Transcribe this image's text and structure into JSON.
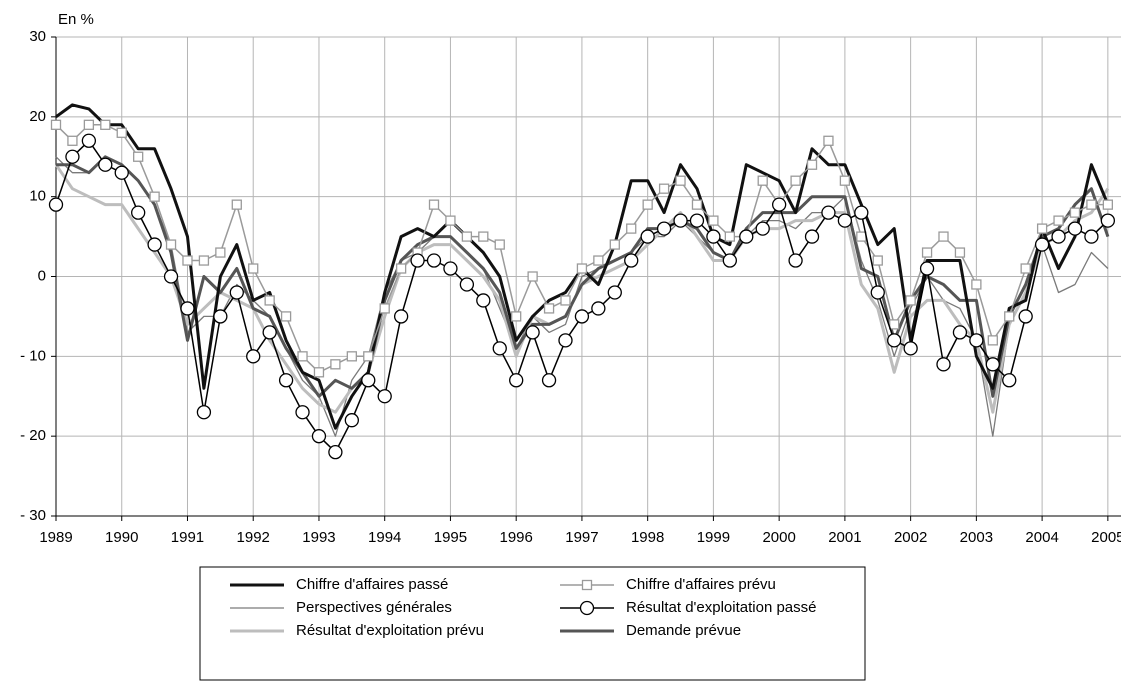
{
  "chart_data": {
    "type": "line",
    "y_label": "En %",
    "x": [
      1989,
      1989.25,
      1989.5,
      1989.75,
      1990,
      1990.25,
      1990.5,
      1990.75,
      1991,
      1991.25,
      1991.5,
      1991.75,
      1992,
      1992.25,
      1992.5,
      1992.75,
      1993,
      1993.25,
      1993.5,
      1993.75,
      1994,
      1994.25,
      1994.5,
      1994.75,
      1995,
      1995.25,
      1995.5,
      1995.75,
      1996,
      1996.25,
      1996.5,
      1996.75,
      1997,
      1997.25,
      1997.5,
      1997.75,
      1998,
      1998.25,
      1998.5,
      1998.75,
      1999,
      1999.25,
      1999.5,
      1999.75,
      2000,
      2000.25,
      2000.5,
      2000.75,
      2001,
      2001.25,
      2001.5,
      2001.75,
      2002,
      2002.25,
      2002.5,
      2002.75,
      2003,
      2003.25,
      2003.5,
      2003.75,
      2004,
      2004.25,
      2004.5,
      2004.75,
      2005
    ],
    "xlim": [
      1989,
      2005.2
    ],
    "xticks": [
      1989,
      1990,
      1991,
      1992,
      1993,
      1994,
      1995,
      1996,
      1997,
      1998,
      1999,
      2000,
      2001,
      2002,
      2003,
      2004,
      2005
    ],
    "ylim": [
      -30,
      30
    ],
    "yticks": [
      {
        "value": -30,
        "label": "- 30"
      },
      {
        "value": -20,
        "label": "- 20"
      },
      {
        "value": -10,
        "label": "- 10"
      },
      0,
      10,
      20,
      30
    ],
    "grid": true,
    "series": [
      {
        "name": "Chiffre d'affaires passé",
        "color": "#111111",
        "marker": "none",
        "values": [
          20,
          21.5,
          21,
          19,
          19,
          16,
          16,
          11,
          5,
          -14,
          0,
          4,
          -3,
          -2,
          -8,
          -12,
          -13,
          -19,
          -15,
          -12,
          -2,
          5,
          6,
          5,
          7,
          5,
          3,
          0,
          -8,
          -5,
          -3,
          -2,
          1,
          -1,
          4,
          12,
          12,
          8,
          14,
          11,
          5,
          4,
          14,
          13,
          12,
          8,
          16,
          14,
          14,
          9,
          4,
          6,
          -8,
          2,
          2,
          2,
          -10,
          -14,
          -4,
          -3,
          6,
          1,
          5,
          14,
          9
        ]
      },
      {
        "name": "Chiffre d'affaires prévu",
        "color": "#9a9a9a",
        "marker": "square",
        "values": [
          19,
          17,
          19,
          19,
          18,
          15,
          10,
          4,
          2,
          2,
          3,
          9,
          1,
          -3,
          -5,
          -10,
          -12,
          -11,
          -10,
          -10,
          -4,
          1,
          3,
          9,
          7,
          5,
          5,
          4,
          -5,
          0,
          -4,
          -3,
          1,
          2,
          4,
          6,
          9,
          11,
          12,
          9,
          7,
          5,
          5,
          12,
          9,
          12,
          14,
          17,
          12,
          5,
          2,
          -6,
          -3,
          3,
          5,
          3,
          -1,
          -8,
          -5,
          1,
          6,
          7,
          8,
          9,
          9
        ]
      },
      {
        "name": "Perspectives générales",
        "color": "#7a7a7a",
        "marker": "none",
        "values": [
          15,
          13,
          13,
          15,
          14,
          12,
          9,
          4,
          -7,
          -5,
          -5,
          -1,
          -3,
          -5,
          -9,
          -13,
          -15,
          -20,
          -13,
          -10,
          -2,
          2,
          3,
          5,
          5,
          3,
          1,
          -4,
          -9,
          -5,
          -7,
          -6,
          0,
          1,
          2,
          3,
          5,
          5,
          7,
          5,
          3,
          2,
          5,
          7,
          7,
          6,
          8,
          8,
          10,
          2,
          -3,
          -10,
          -4,
          0,
          -3,
          -4,
          -8,
          -20,
          -6,
          -2,
          4,
          -2,
          -1,
          3,
          1
        ]
      },
      {
        "name": "Résultat d'exploitation passé",
        "color": "#000000",
        "marker": "circle",
        "values": [
          9,
          15,
          17,
          14,
          13,
          8,
          4,
          0,
          -4,
          -17,
          -5,
          -2,
          -10,
          -7,
          -13,
          -17,
          -20,
          -22,
          -18,
          -13,
          -15,
          -5,
          2,
          2,
          1,
          -1,
          -3,
          -9,
          -13,
          -7,
          -13,
          -8,
          -5,
          -4,
          -2,
          2,
          5,
          6,
          7,
          7,
          5,
          2,
          5,
          6,
          9,
          2,
          5,
          8,
          7,
          8,
          -2,
          -8,
          -9,
          1,
          -11,
          -7,
          -8,
          -11,
          -13,
          -5,
          4,
          5,
          6,
          5,
          7
        ]
      },
      {
        "name": "Résultat d'exploitation prévu",
        "color": "#bdbdbd",
        "marker": "none",
        "values": [
          14,
          11,
          10,
          9,
          9,
          6,
          3,
          0,
          -6,
          -4,
          -2,
          -3,
          -4,
          -8,
          -11,
          -14,
          -16,
          -17,
          -14,
          -12,
          -5,
          1,
          3,
          4,
          4,
          2,
          0,
          -3,
          -10,
          -5,
          -6,
          -5,
          -1,
          0,
          1,
          2,
          4,
          6,
          8,
          5,
          2,
          2,
          5,
          6,
          6,
          7,
          7,
          8,
          8,
          -1,
          -4,
          -12,
          -5,
          -3,
          -3,
          -6,
          -8,
          -17,
          -6,
          -2,
          4,
          5,
          7,
          8,
          11
        ]
      },
      {
        "name": "Demande prévue",
        "color": "#555555",
        "marker": "none",
        "values": [
          14,
          14,
          13,
          15,
          14,
          12,
          9,
          3,
          -8,
          0,
          -2,
          1,
          -4,
          -5,
          -9,
          -12,
          -15,
          -13,
          -14,
          -12,
          -3,
          2,
          4,
          5,
          5,
          3,
          1,
          -2,
          -9,
          -6,
          -6,
          -5,
          -1,
          1,
          2,
          3,
          6,
          6,
          7,
          6,
          3,
          2,
          6,
          8,
          8,
          8,
          10,
          10,
          10,
          1,
          0,
          -8,
          -3,
          0,
          -1,
          -3,
          -3,
          -15,
          -5,
          -1,
          5,
          6,
          9,
          11,
          5
        ]
      }
    ]
  }
}
